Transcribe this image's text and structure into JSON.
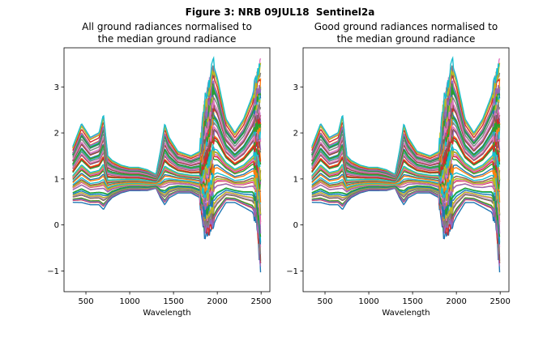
{
  "figure": {
    "suptitle": "Figure 3: NRB 09JUL18  Sentinel2a"
  },
  "chart_data": [
    {
      "type": "line",
      "title_lines": [
        "All ground radiances normalised to",
        "the median ground radiance"
      ],
      "xlabel": "Wavelength",
      "ylabel": "",
      "xlim": [
        250,
        2600
      ],
      "ylim": [
        -1.45,
        3.85
      ],
      "xticks": [
        500,
        1000,
        1500,
        2000,
        2500
      ],
      "yticks": [
        -1,
        0,
        1,
        2,
        3
      ],
      "grid": false,
      "legend": "none",
      "series_count": 60,
      "x": [
        350,
        450,
        550,
        650,
        700,
        750,
        800,
        900,
        1000,
        1100,
        1200,
        1300,
        1350,
        1400,
        1450,
        1550,
        1700,
        1800,
        1850,
        1900,
        1950,
        2000,
        2100,
        2200,
        2300,
        2400,
        2450,
        2500
      ],
      "envelope": {
        "upper": [
          1.7,
          2.2,
          1.9,
          2.0,
          2.4,
          1.5,
          1.4,
          1.3,
          1.25,
          1.25,
          1.2,
          1.1,
          1.6,
          2.2,
          1.9,
          1.6,
          1.5,
          1.6,
          2.6,
          3.0,
          3.5,
          3.2,
          2.3,
          2.0,
          2.3,
          2.8,
          3.2,
          3.6
        ],
        "lower": [
          0.5,
          0.5,
          0.45,
          0.45,
          0.35,
          0.5,
          0.6,
          0.7,
          0.75,
          0.75,
          0.75,
          0.8,
          0.6,
          0.45,
          0.6,
          0.7,
          0.7,
          0.6,
          -0.1,
          -0.15,
          0.0,
          0.2,
          0.5,
          0.5,
          0.4,
          0.3,
          0.1,
          -1.2
        ]
      }
    },
    {
      "type": "line",
      "title_lines": [
        "Good ground radiances normalised to",
        "the median ground radiance"
      ],
      "xlabel": "Wavelength",
      "ylabel": "",
      "xlim": [
        250,
        2600
      ],
      "ylim": [
        -1.45,
        3.85
      ],
      "xticks": [
        500,
        1000,
        1500,
        2000,
        2500
      ],
      "yticks": [
        -1,
        0,
        1,
        2,
        3
      ],
      "grid": false,
      "legend": "none",
      "series_count": 60,
      "x": [
        350,
        450,
        550,
        650,
        700,
        750,
        800,
        900,
        1000,
        1100,
        1200,
        1300,
        1350,
        1400,
        1450,
        1550,
        1700,
        1800,
        1850,
        1900,
        1950,
        2000,
        2100,
        2200,
        2300,
        2400,
        2450,
        2500
      ],
      "envelope": {
        "upper": [
          1.7,
          2.2,
          1.9,
          2.0,
          2.4,
          1.5,
          1.4,
          1.3,
          1.25,
          1.25,
          1.2,
          1.1,
          1.6,
          2.2,
          1.9,
          1.6,
          1.5,
          1.6,
          2.6,
          3.0,
          3.5,
          3.2,
          2.3,
          2.0,
          2.3,
          2.8,
          3.2,
          3.6
        ],
        "lower": [
          0.5,
          0.5,
          0.45,
          0.45,
          0.35,
          0.5,
          0.6,
          0.7,
          0.75,
          0.75,
          0.75,
          0.8,
          0.6,
          0.45,
          0.6,
          0.7,
          0.7,
          0.6,
          -0.1,
          -0.15,
          0.0,
          0.2,
          0.5,
          0.5,
          0.4,
          0.3,
          0.1,
          -1.2
        ]
      }
    }
  ],
  "colors": [
    "#1f77b4",
    "#ff7f0e",
    "#2ca02c",
    "#d62728",
    "#9467bd",
    "#8c564b",
    "#e377c2",
    "#7f7f7f",
    "#bcbd22",
    "#17becf"
  ]
}
